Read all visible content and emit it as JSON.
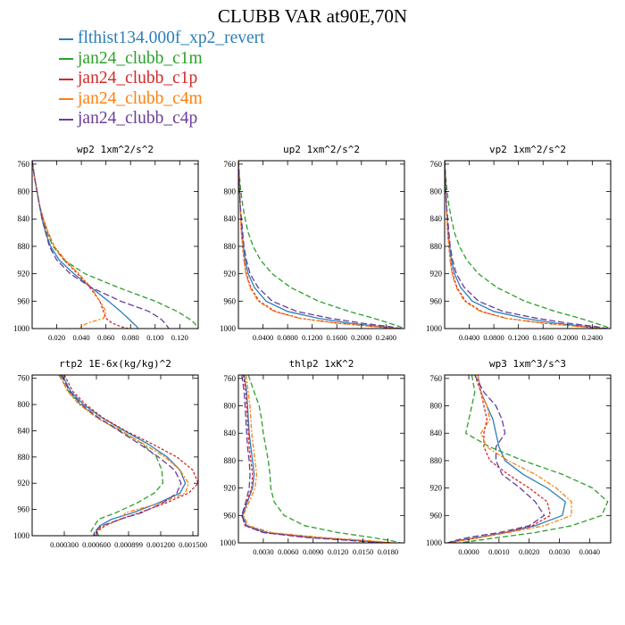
{
  "title": "CLUBB VAR at90E,70N",
  "legend": [
    {
      "label": "flthist134.000f_xp2_revert",
      "color": "#2c7fb8"
    },
    {
      "label": "jan24_clubb_c1m",
      "color": "#2ca02c"
    },
    {
      "label": "jan24_clubb_c1p",
      "color": "#d62728"
    },
    {
      "label": "jan24_clubb_c4m",
      "color": "#ff7f0e"
    },
    {
      "label": "jan24_clubb_c4p",
      "color": "#6a3d9a"
    }
  ],
  "chart_data": [
    {
      "type": "line",
      "title": "wp2  1xm^2/s^2",
      "xlim": [
        0.0,
        0.135
      ],
      "xticks": [
        0.02,
        0.04,
        0.06,
        0.08,
        0.1,
        0.12
      ],
      "xtick_labels": [
        "0.020",
        "0.040",
        "0.060",
        "0.080",
        "0.100",
        "0.120"
      ],
      "ylim": [
        1000,
        755
      ],
      "yticks": [
        760,
        800,
        840,
        880,
        920,
        960,
        1000
      ],
      "y": [
        755,
        780,
        800,
        820,
        840,
        860,
        880,
        900,
        920,
        940,
        960,
        975,
        985,
        992,
        997,
        1000
      ],
      "series": [
        {
          "values": [
            0.0,
            0.002,
            0.004,
            0.006,
            0.008,
            0.011,
            0.015,
            0.022,
            0.034,
            0.048,
            0.062,
            0.072,
            0.078,
            0.082,
            0.085,
            0.086
          ]
        },
        {
          "values": [
            0.0,
            0.002,
            0.004,
            0.006,
            0.009,
            0.012,
            0.017,
            0.026,
            0.043,
            0.07,
            0.1,
            0.118,
            0.127,
            0.132,
            0.134,
            0.135
          ]
        },
        {
          "values": [
            0.0,
            0.002,
            0.004,
            0.006,
            0.009,
            0.013,
            0.018,
            0.026,
            0.037,
            0.047,
            0.055,
            0.058,
            0.06,
            0.065,
            0.072,
            0.078
          ]
        },
        {
          "values": [
            0.0,
            0.002,
            0.004,
            0.006,
            0.009,
            0.013,
            0.018,
            0.027,
            0.038,
            0.048,
            0.055,
            0.06,
            0.058,
            0.045,
            0.04,
            0.038
          ]
        },
        {
          "values": [
            0.0,
            0.002,
            0.004,
            0.006,
            0.008,
            0.011,
            0.014,
            0.02,
            0.031,
            0.048,
            0.072,
            0.095,
            0.104,
            0.108,
            0.11,
            0.111
          ]
        }
      ]
    },
    {
      "type": "line",
      "title": "up2  1xm^2/s^2",
      "xlim": [
        0.0,
        0.27
      ],
      "xticks": [
        0.04,
        0.08,
        0.12,
        0.16,
        0.2,
        0.24
      ],
      "xtick_labels": [
        "0.0400",
        "0.0800",
        "0.1200",
        "0.1600",
        "0.2000",
        "0.2400"
      ],
      "ylim": [
        1000,
        755
      ],
      "yticks": [
        760,
        800,
        840,
        880,
        920,
        960,
        1000
      ],
      "y": [
        755,
        780,
        800,
        820,
        840,
        860,
        880,
        900,
        920,
        940,
        960,
        975,
        985,
        992,
        997,
        1000
      ],
      "series": [
        {
          "values": [
            0.0,
            0.001,
            0.002,
            0.003,
            0.004,
            0.006,
            0.008,
            0.011,
            0.016,
            0.026,
            0.045,
            0.08,
            0.13,
            0.18,
            0.23,
            0.26
          ]
        },
        {
          "values": [
            0.0,
            0.002,
            0.004,
            0.007,
            0.011,
            0.016,
            0.024,
            0.036,
            0.055,
            0.085,
            0.13,
            0.18,
            0.22,
            0.245,
            0.262,
            0.27
          ]
        },
        {
          "values": [
            0.0,
            0.001,
            0.002,
            0.003,
            0.004,
            0.005,
            0.007,
            0.009,
            0.013,
            0.02,
            0.034,
            0.06,
            0.1,
            0.16,
            0.22,
            0.26
          ]
        },
        {
          "values": [
            0.0,
            0.001,
            0.002,
            0.003,
            0.004,
            0.005,
            0.007,
            0.009,
            0.012,
            0.019,
            0.032,
            0.058,
            0.1,
            0.16,
            0.22,
            0.26
          ]
        },
        {
          "values": [
            0.0,
            0.001,
            0.002,
            0.003,
            0.005,
            0.007,
            0.009,
            0.013,
            0.019,
            0.032,
            0.055,
            0.095,
            0.15,
            0.2,
            0.245,
            0.265
          ]
        }
      ]
    },
    {
      "type": "line",
      "title": "vp2  1xm^2/s^2",
      "xlim": [
        0.0,
        0.27
      ],
      "xticks": [
        0.04,
        0.08,
        0.12,
        0.16,
        0.2,
        0.24
      ],
      "xtick_labels": [
        "0.0400",
        "0.0800",
        "0.1200",
        "0.1600",
        "0.2000",
        "0.2400"
      ],
      "ylim": [
        1000,
        755
      ],
      "yticks": [
        760,
        800,
        840,
        880,
        920,
        960,
        1000
      ],
      "y": [
        755,
        780,
        800,
        820,
        840,
        860,
        880,
        900,
        920,
        940,
        960,
        975,
        985,
        992,
        997,
        1000
      ],
      "series": [
        {
          "values": [
            0.0,
            0.001,
            0.002,
            0.003,
            0.004,
            0.006,
            0.008,
            0.011,
            0.016,
            0.026,
            0.045,
            0.08,
            0.13,
            0.18,
            0.23,
            0.26
          ]
        },
        {
          "values": [
            0.0,
            0.002,
            0.004,
            0.007,
            0.011,
            0.016,
            0.024,
            0.036,
            0.055,
            0.085,
            0.13,
            0.18,
            0.22,
            0.245,
            0.262,
            0.27
          ]
        },
        {
          "values": [
            0.0,
            0.001,
            0.002,
            0.003,
            0.004,
            0.005,
            0.007,
            0.009,
            0.013,
            0.02,
            0.034,
            0.06,
            0.1,
            0.16,
            0.22,
            0.26
          ]
        },
        {
          "values": [
            0.0,
            0.001,
            0.002,
            0.003,
            0.004,
            0.005,
            0.007,
            0.009,
            0.012,
            0.019,
            0.032,
            0.058,
            0.1,
            0.16,
            0.22,
            0.26
          ]
        },
        {
          "values": [
            0.0,
            0.001,
            0.002,
            0.003,
            0.005,
            0.007,
            0.009,
            0.013,
            0.019,
            0.032,
            0.055,
            0.095,
            0.15,
            0.2,
            0.245,
            0.265
          ]
        }
      ]
    },
    {
      "type": "line",
      "title": "rtp2  1E-6x(kg/kg)^2",
      "xlim": [
        0.0,
        0.00155
      ],
      "xticks": [
        0.0003,
        0.0006,
        0.0009,
        0.0012,
        0.0015
      ],
      "xtick_labels": [
        "0.000300",
        "0.000600",
        "0.000899",
        "0.001200",
        "0.001500"
      ],
      "ylim": [
        1000,
        755
      ],
      "yticks": [
        760,
        800,
        840,
        880,
        920,
        960,
        1000
      ],
      "y": [
        755,
        780,
        800,
        820,
        840,
        860,
        880,
        900,
        920,
        935,
        950,
        965,
        975,
        985,
        993,
        1000
      ],
      "series": [
        {
          "values": [
            0.00028,
            0.00036,
            0.00048,
            0.00065,
            0.00086,
            0.00108,
            0.00126,
            0.00138,
            0.00143,
            0.00138,
            0.00118,
            0.00094,
            0.00074,
            0.00063,
            0.0006,
            0.00062
          ]
        },
        {
          "values": [
            0.00025,
            0.00034,
            0.00045,
            0.00061,
            0.00083,
            0.00103,
            0.00116,
            0.00121,
            0.00122,
            0.00114,
            0.00098,
            0.00078,
            0.00062,
            0.00058,
            0.00055,
            0.00058
          ]
        },
        {
          "values": [
            0.0003,
            0.00038,
            0.0005,
            0.00066,
            0.00087,
            0.00112,
            0.00135,
            0.0015,
            0.00155,
            0.00146,
            0.00125,
            0.001,
            0.00082,
            0.00068,
            0.00061,
            0.0006
          ]
        },
        {
          "values": [
            0.00026,
            0.00033,
            0.00044,
            0.0006,
            0.00082,
            0.00104,
            0.00124,
            0.00138,
            0.00146,
            0.00143,
            0.0012,
            0.00087,
            0.00083,
            0.00066,
            0.0006,
            0.00059
          ]
        },
        {
          "values": [
            0.00027,
            0.00035,
            0.00046,
            0.00062,
            0.00081,
            0.001,
            0.00118,
            0.00133,
            0.00139,
            0.00135,
            0.00122,
            0.00102,
            0.00082,
            0.00065,
            0.00058,
            0.00058
          ]
        }
      ]
    },
    {
      "type": "line",
      "title": "thlp2  1xK^2",
      "xlim": [
        0.0,
        0.02
      ],
      "xticks": [
        0.003,
        0.006,
        0.009,
        0.012,
        0.015,
        0.018
      ],
      "xtick_labels": [
        "0.0030",
        "0.0060",
        "0.0090",
        "0.0120",
        "0.0150",
        "0.0180"
      ],
      "ylim": [
        1000,
        755
      ],
      "yticks": [
        760,
        800,
        840,
        880,
        920,
        960,
        1000
      ],
      "y": [
        755,
        780,
        800,
        820,
        840,
        860,
        880,
        900,
        920,
        940,
        960,
        975,
        985,
        992,
        997,
        1000
      ],
      "series": [
        {
          "values": [
            0.0007,
            0.001,
            0.0011,
            0.0012,
            0.0013,
            0.0015,
            0.0017,
            0.0019,
            0.0017,
            0.0011,
            0.0005,
            0.001,
            0.0035,
            0.009,
            0.015,
            0.018
          ]
        },
        {
          "values": [
            0.0012,
            0.0019,
            0.0025,
            0.0028,
            0.003,
            0.0033,
            0.0036,
            0.0038,
            0.0039,
            0.0043,
            0.0055,
            0.008,
            0.012,
            0.016,
            0.0185,
            0.0195
          ]
        },
        {
          "values": [
            0.0006,
            0.0009,
            0.001,
            0.0011,
            0.0012,
            0.0013,
            0.0015,
            0.0017,
            0.0016,
            0.001,
            0.0004,
            0.0008,
            0.003,
            0.0085,
            0.0145,
            0.0185
          ]
        },
        {
          "values": [
            0.0009,
            0.0012,
            0.0014,
            0.0015,
            0.0016,
            0.0018,
            0.002,
            0.0022,
            0.002,
            0.0013,
            0.0006,
            0.0012,
            0.004,
            0.01,
            0.016,
            0.0188
          ]
        },
        {
          "values": [
            0.0004,
            0.0007,
            0.0008,
            0.0009,
            0.001,
            0.0011,
            0.0013,
            0.0014,
            0.0013,
            0.0009,
            0.0004,
            0.0009,
            0.003,
            0.008,
            0.014,
            0.017
          ]
        }
      ]
    },
    {
      "type": "line",
      "title": "wp3  1xm^3/s^3",
      "xlim": [
        -0.0008,
        0.0047
      ],
      "xticks": [
        0.0,
        0.001,
        0.002,
        0.003,
        0.004
      ],
      "xtick_labels": [
        "0.0000",
        "0.0010",
        "0.0020",
        "0.0030",
        "0.0040"
      ],
      "ylim": [
        1000,
        755
      ],
      "yticks": [
        760,
        800,
        840,
        880,
        920,
        960,
        1000
      ],
      "y": [
        755,
        780,
        800,
        820,
        840,
        860,
        880,
        900,
        920,
        940,
        960,
        975,
        985,
        992,
        997,
        1000
      ],
      "series": [
        {
          "values": [
            0.0003,
            0.0004,
            0.0006,
            0.0008,
            0.0009,
            0.001,
            0.0012,
            0.0018,
            0.0026,
            0.0032,
            0.0031,
            0.0022,
            0.0012,
            0.0003,
            -0.0004,
            -0.0007
          ]
        },
        {
          "values": [
            0.0001,
            0.0002,
            0.0001,
            0.0,
            -0.0001,
            0.0007,
            0.0018,
            0.0031,
            0.0041,
            0.0046,
            0.0044,
            0.0034,
            0.0022,
            0.001,
            0.0002,
            -0.0003
          ]
        },
        {
          "values": [
            0.0002,
            0.0004,
            0.0005,
            0.0006,
            0.0005,
            0.0005,
            0.0007,
            0.0013,
            0.002,
            0.0026,
            0.0027,
            0.0021,
            0.0012,
            0.0004,
            -0.0003,
            -0.0006
          ]
        },
        {
          "values": [
            0.0003,
            0.0004,
            0.0006,
            0.0007,
            0.0004,
            0.0006,
            0.0013,
            0.0022,
            0.0029,
            0.0034,
            0.0034,
            0.0025,
            0.0013,
            0.0004,
            -0.0003,
            -0.0006
          ]
        },
        {
          "values": [
            0.0002,
            0.0005,
            0.0009,
            0.0011,
            0.0012,
            0.0009,
            0.0009,
            0.0011,
            0.0017,
            0.0022,
            0.0025,
            0.002,
            0.001,
            0.0,
            -0.0005,
            -0.0007
          ]
        }
      ]
    }
  ]
}
